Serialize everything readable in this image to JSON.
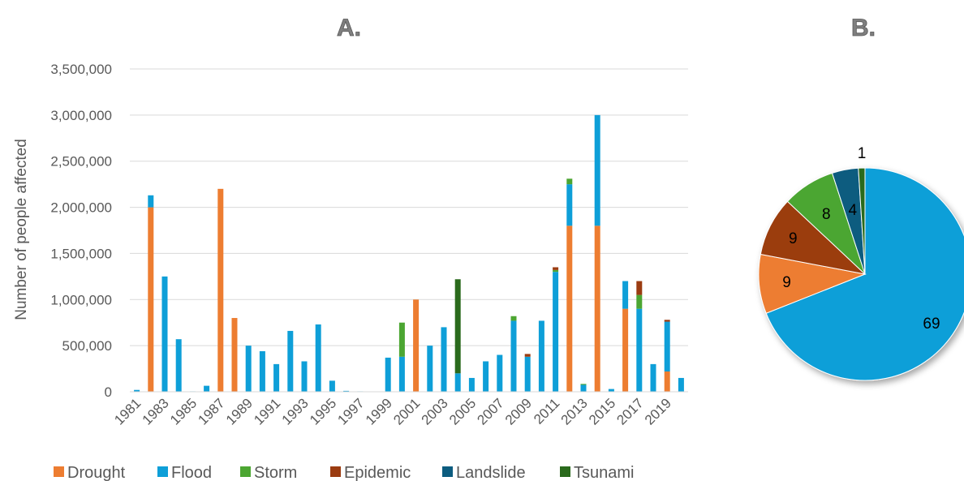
{
  "chart_data": [
    {
      "type": "bar",
      "stacked": true,
      "title": "A.",
      "xlabel": "",
      "ylabel": "Number of people affected",
      "ylim": [
        0,
        3500000
      ],
      "yticks": [
        0,
        500000,
        1000000,
        1500000,
        2000000,
        2500000,
        3000000,
        3500000
      ],
      "ytick_labels": [
        "0",
        "500,000",
        "1,000,000",
        "1,500,000",
        "2,000,000",
        "2,500,000",
        "3,000,000",
        "3,500,000"
      ],
      "grid": true,
      "legend_position": "bottom",
      "categories": [
        "1981",
        "1982",
        "1983",
        "1984",
        "1985",
        "1986",
        "1987",
        "1988",
        "1989",
        "1990",
        "1991",
        "1992",
        "1993",
        "1994",
        "1995",
        "1996",
        "1997",
        "1998",
        "1999",
        "2000",
        "2001",
        "2002",
        "2003",
        "2004",
        "2005",
        "2006",
        "2007",
        "2008",
        "2009",
        "2010",
        "2011",
        "2012",
        "2013",
        "2014",
        "2015",
        "2016",
        "2017",
        "2018",
        "2019",
        "2020"
      ],
      "xtick_labels": [
        "1981",
        "1983",
        "1985",
        "1987",
        "1989",
        "1991",
        "1993",
        "1995",
        "1997",
        "1999",
        "2001",
        "2003",
        "2005",
        "2007",
        "2009",
        "2011",
        "2013",
        "2015",
        "2017",
        "2019"
      ],
      "series": [
        {
          "name": "Drought",
          "color": "#ED7D31",
          "values": [
            0,
            2000000,
            0,
            0,
            0,
            0,
            2200000,
            800000,
            0,
            0,
            0,
            0,
            0,
            0,
            0,
            0,
            0,
            0,
            0,
            0,
            1000000,
            0,
            0,
            0,
            0,
            0,
            0,
            0,
            0,
            0,
            0,
            1800000,
            0,
            1800000,
            0,
            900000,
            0,
            0,
            220000,
            0
          ]
        },
        {
          "name": "Flood",
          "color": "#0E9FD8",
          "values": [
            20000,
            130000,
            1250000,
            570000,
            5000,
            65000,
            0,
            0,
            500000,
            440000,
            300000,
            660000,
            330000,
            730000,
            120000,
            10000,
            5000,
            0,
            370000,
            380000,
            0,
            500000,
            700000,
            200000,
            150000,
            330000,
            400000,
            770000,
            380000,
            770000,
            1300000,
            450000,
            75000,
            1200000,
            30000,
            300000,
            900000,
            300000,
            540000,
            150000
          ]
        },
        {
          "name": "Storm",
          "color": "#4CA632",
          "values": [
            0,
            0,
            0,
            0,
            0,
            0,
            0,
            0,
            0,
            0,
            0,
            0,
            0,
            0,
            0,
            0,
            0,
            0,
            0,
            0,
            0,
            0,
            0,
            0,
            0,
            0,
            0,
            0,
            0,
            0,
            0,
            0,
            0,
            0,
            0,
            0,
            0,
            0,
            0,
            0
          ]
        },
        {
          "name": "Epidemic",
          "color": "#9B3C11",
          "values": [
            0,
            0,
            0,
            0,
            0,
            0,
            0,
            0,
            0,
            0,
            0,
            0,
            0,
            0,
            0,
            0,
            0,
            0,
            0,
            0,
            0,
            0,
            0,
            0,
            0,
            0,
            0,
            0,
            0,
            0,
            0,
            0,
            0,
            0,
            0,
            0,
            0,
            0,
            0,
            0
          ]
        },
        {
          "name": "Landslide",
          "color": "#0C5C7F",
          "values": [
            0,
            0,
            0,
            0,
            0,
            0,
            0,
            0,
            0,
            0,
            0,
            0,
            0,
            0,
            0,
            0,
            0,
            0,
            0,
            0,
            0,
            0,
            0,
            0,
            0,
            0,
            0,
            0,
            0,
            0,
            0,
            0,
            0,
            0,
            0,
            0,
            0,
            0,
            0,
            0
          ]
        },
        {
          "name": "Tsunami",
          "color": "#2A6A1C",
          "values": [
            0,
            0,
            0,
            0,
            0,
            0,
            0,
            0,
            0,
            0,
            0,
            0,
            0,
            0,
            0,
            0,
            0,
            0,
            0,
            0,
            0,
            0,
            0,
            0,
            0,
            0,
            0,
            0,
            0,
            0,
            0,
            0,
            0,
            0,
            0,
            0,
            0,
            0,
            0,
            0
          ]
        }
      ]
    },
    {
      "type": "pie",
      "title": "B.",
      "slices": [
        {
          "name": "Flood",
          "value": 69,
          "label": "69",
          "color": "#0E9FD8"
        },
        {
          "name": "Drought",
          "value": 9,
          "label": "9",
          "color": "#ED7D31"
        },
        {
          "name": "Epidemic",
          "value": 9,
          "label": "9",
          "color": "#9B3C11"
        },
        {
          "name": "Storm",
          "value": 8,
          "label": "8",
          "color": "#4CA632"
        },
        {
          "name": "Landslide",
          "value": 4,
          "label": "4",
          "color": "#0C5C7F"
        },
        {
          "name": "Tsunami",
          "value": 1,
          "label": "1",
          "color": "#2A6A1C"
        }
      ]
    }
  ],
  "legend": [
    {
      "label": "Drought",
      "color": "#ED7D31"
    },
    {
      "label": "Flood",
      "color": "#0E9FD8"
    },
    {
      "label": "Storm",
      "color": "#4CA632"
    },
    {
      "label": "Epidemic",
      "color": "#9B3C11"
    },
    {
      "label": "Landslide",
      "color": "#0C5C7F"
    },
    {
      "label": "Tsunami",
      "color": "#2A6A1C"
    }
  ],
  "extra_segments": [
    {
      "year": "2000",
      "series": "Storm",
      "value": 370000
    },
    {
      "year": "2004",
      "series": "Tsunami",
      "value": 1020000
    },
    {
      "year": "2008",
      "series": "Storm",
      "value": 50000
    },
    {
      "year": "2009",
      "series": "Epidemic",
      "value": 30000
    },
    {
      "year": "2012",
      "series": "Storm",
      "value": 60000
    },
    {
      "year": "2013",
      "series": "Storm",
      "value": 10000
    },
    {
      "year": "2017",
      "series": "Storm",
      "value": 150000
    },
    {
      "year": "2017",
      "series": "Epidemic",
      "value": 150000
    },
    {
      "year": "2011",
      "series": "Storm",
      "value": 20000
    },
    {
      "year": "2011",
      "series": "Epidemic",
      "value": 30000
    },
    {
      "year": "2019",
      "series": "Epidemic",
      "value": 20000
    }
  ]
}
